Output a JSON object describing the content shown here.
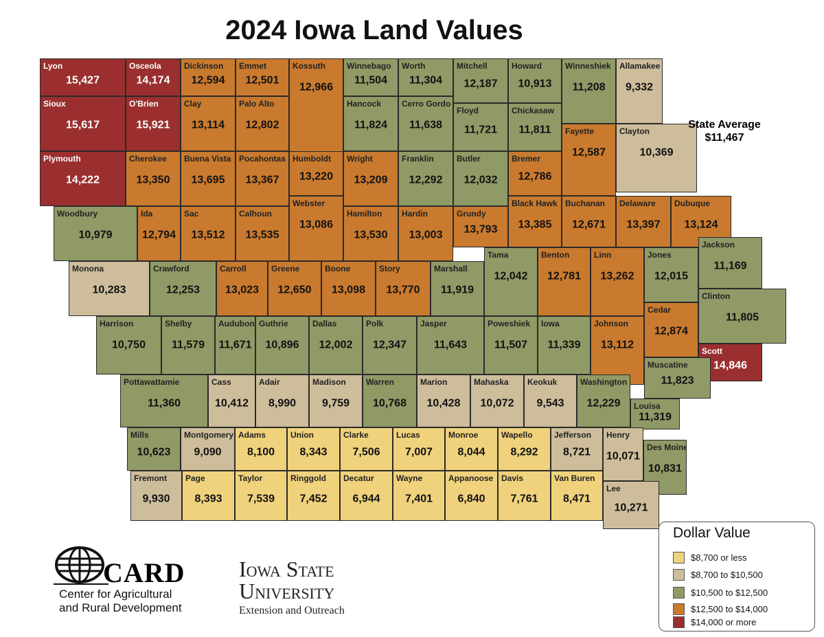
{
  "title": "2024 Iowa Land Values",
  "state_average": {
    "label": "State Average",
    "value": "$11,467"
  },
  "legend": {
    "title": "Dollar Value",
    "bins": [
      {
        "label": "$8,700 or less",
        "max": 8700,
        "color": "#f0d27c"
      },
      {
        "label": "$8,700 to $10,500",
        "max": 10500,
        "color": "#cdbd9b"
      },
      {
        "label": "$10,500 to $12,500",
        "max": 12500,
        "color": "#8f9a66"
      },
      {
        "label": "$12,500 to $14,000",
        "max": 14000,
        "color": "#c97a2e"
      },
      {
        "label": "$14,000 or more",
        "max": null,
        "color": "#9b2f2f"
      }
    ]
  },
  "counties": [
    {
      "name": "Lyon",
      "value": "15,427"
    },
    {
      "name": "Osceola",
      "value": "14,174"
    },
    {
      "name": "Dickinson",
      "value": "12,594"
    },
    {
      "name": "Emmet",
      "value": "12,501"
    },
    {
      "name": "Kossuth",
      "value": "12,966"
    },
    {
      "name": "Winnebago",
      "value": "11,504"
    },
    {
      "name": "Worth",
      "value": "11,304"
    },
    {
      "name": "Mitchell",
      "value": "12,187"
    },
    {
      "name": "Howard",
      "value": "10,913"
    },
    {
      "name": "Winneshiek",
      "value": "11,208"
    },
    {
      "name": "Allamakee",
      "value": "9,332"
    },
    {
      "name": "Sioux",
      "value": "15,617"
    },
    {
      "name": "O'Brien",
      "value": "15,921"
    },
    {
      "name": "Clay",
      "value": "13,114"
    },
    {
      "name": "Palo Alto",
      "value": "12,802"
    },
    {
      "name": "Hancock",
      "value": "11,824"
    },
    {
      "name": "Cerro Gordo",
      "value": "11,638"
    },
    {
      "name": "Floyd",
      "value": "11,721"
    },
    {
      "name": "Chickasaw",
      "value": "11,811"
    },
    {
      "name": "Fayette",
      "value": "12,587"
    },
    {
      "name": "Clayton",
      "value": "10,369"
    },
    {
      "name": "Plymouth",
      "value": "14,222"
    },
    {
      "name": "Cherokee",
      "value": "13,350"
    },
    {
      "name": "Buena Vista",
      "value": "13,695"
    },
    {
      "name": "Pocahontas",
      "value": "13,367"
    },
    {
      "name": "Humboldt",
      "value": "13,220"
    },
    {
      "name": "Wright",
      "value": "13,209"
    },
    {
      "name": "Franklin",
      "value": "12,292"
    },
    {
      "name": "Butler",
      "value": "12,032"
    },
    {
      "name": "Bremer",
      "value": "12,786"
    },
    {
      "name": "Woodbury",
      "value": "10,979"
    },
    {
      "name": "Ida",
      "value": "12,794"
    },
    {
      "name": "Sac",
      "value": "13,512"
    },
    {
      "name": "Calhoun",
      "value": "13,535"
    },
    {
      "name": "Webster",
      "value": "13,086"
    },
    {
      "name": "Hamilton",
      "value": "13,530"
    },
    {
      "name": "Hardin",
      "value": "13,003"
    },
    {
      "name": "Grundy",
      "value": "13,793"
    },
    {
      "name": "Black Hawk",
      "value": "13,385"
    },
    {
      "name": "Buchanan",
      "value": "12,671"
    },
    {
      "name": "Delaware",
      "value": "13,397"
    },
    {
      "name": "Dubuque",
      "value": "13,124"
    },
    {
      "name": "Monona",
      "value": "10,283"
    },
    {
      "name": "Crawford",
      "value": "12,253"
    },
    {
      "name": "Carroll",
      "value": "13,023"
    },
    {
      "name": "Greene",
      "value": "12,650"
    },
    {
      "name": "Boone",
      "value": "13,098"
    },
    {
      "name": "Story",
      "value": "13,770"
    },
    {
      "name": "Marshall",
      "value": "11,919"
    },
    {
      "name": "Tama",
      "value": "12,042"
    },
    {
      "name": "Benton",
      "value": "12,781"
    },
    {
      "name": "Linn",
      "value": "13,262"
    },
    {
      "name": "Jones",
      "value": "12,015"
    },
    {
      "name": "Jackson",
      "value": "11,169"
    },
    {
      "name": "Harrison",
      "value": "10,750"
    },
    {
      "name": "Shelby",
      "value": "11,579"
    },
    {
      "name": "Audubon",
      "value": "11,671"
    },
    {
      "name": "Guthrie",
      "value": "10,896"
    },
    {
      "name": "Dallas",
      "value": "12,002"
    },
    {
      "name": "Polk",
      "value": "12,347"
    },
    {
      "name": "Jasper",
      "value": "11,643"
    },
    {
      "name": "Poweshiek",
      "value": "11,507"
    },
    {
      "name": "Iowa",
      "value": "11,339"
    },
    {
      "name": "Johnson",
      "value": "13,112"
    },
    {
      "name": "Cedar",
      "value": "12,874"
    },
    {
      "name": "Clinton",
      "value": "11,805"
    },
    {
      "name": "Scott",
      "value": "14,846"
    },
    {
      "name": "Pottawattamie",
      "value": "11,360"
    },
    {
      "name": "Cass",
      "value": "10,412"
    },
    {
      "name": "Adair",
      "value": "8,990"
    },
    {
      "name": "Madison",
      "value": "9,759"
    },
    {
      "name": "Warren",
      "value": "10,768"
    },
    {
      "name": "Marion",
      "value": "10,428"
    },
    {
      "name": "Mahaska",
      "value": "10,072"
    },
    {
      "name": "Keokuk",
      "value": "9,543"
    },
    {
      "name": "Washington",
      "value": "12,229"
    },
    {
      "name": "Muscatine",
      "value": "11,823"
    },
    {
      "name": "Louisa",
      "value": "11,319"
    },
    {
      "name": "Mills",
      "value": "10,623"
    },
    {
      "name": "Montgomery",
      "value": "9,090"
    },
    {
      "name": "Adams",
      "value": "8,100"
    },
    {
      "name": "Union",
      "value": "8,343"
    },
    {
      "name": "Clarke",
      "value": "7,506"
    },
    {
      "name": "Lucas",
      "value": "7,007"
    },
    {
      "name": "Monroe",
      "value": "8,044"
    },
    {
      "name": "Wapello",
      "value": "8,292"
    },
    {
      "name": "Jefferson",
      "value": "8,721"
    },
    {
      "name": "Henry",
      "value": "10,071"
    },
    {
      "name": "Des Moines",
      "value": "10,831"
    },
    {
      "name": "Fremont",
      "value": "9,930"
    },
    {
      "name": "Page",
      "value": "8,393"
    },
    {
      "name": "Taylor",
      "value": "7,539"
    },
    {
      "name": "Ringgold",
      "value": "7,452"
    },
    {
      "name": "Decatur",
      "value": "6,944"
    },
    {
      "name": "Wayne",
      "value": "7,401"
    },
    {
      "name": "Appanoose",
      "value": "6,840"
    },
    {
      "name": "Davis",
      "value": "7,761"
    },
    {
      "name": "Van Buren",
      "value": "8,471"
    },
    {
      "name": "Lee",
      "value": "10,271"
    }
  ],
  "logos": {
    "card": {
      "abbr": "CARD",
      "name_line1": "Center for Agricultural",
      "name_line2": "and Rural Development"
    },
    "isu": {
      "name_line1": "Iowa State",
      "name_line2": "University",
      "subtitle": "Extension and Outreach"
    }
  }
}
